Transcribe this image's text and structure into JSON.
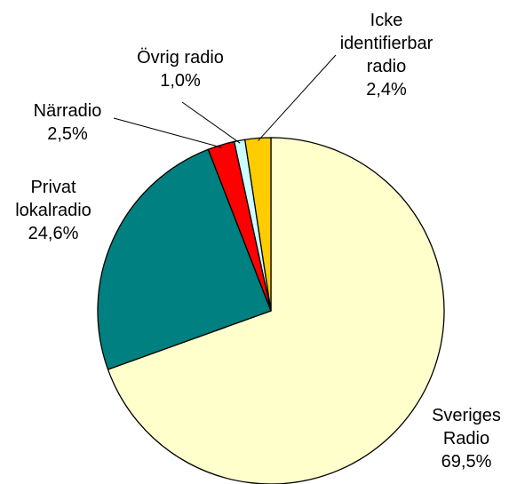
{
  "chart_data": {
    "type": "pie",
    "categories": [
      "Sveriges Radio",
      "Privat lokalradio",
      "Närradio",
      "Övrig radio",
      "Icke identifierbar radio"
    ],
    "values": [
      69.5,
      24.6,
      2.5,
      1.0,
      2.4
    ],
    "value_labels": [
      "69,5%",
      "24,6%",
      "2,5%",
      "1,0%",
      "2,4%"
    ],
    "colors": [
      "#ffffcc",
      "#008080",
      "#ff0000",
      "#ccffff",
      "#ffcc00"
    ]
  }
}
